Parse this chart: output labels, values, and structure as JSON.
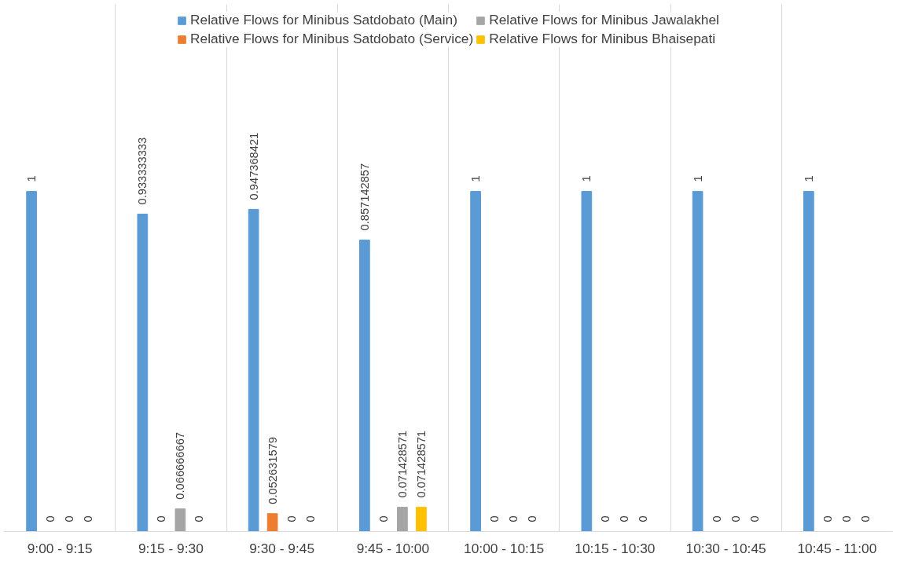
{
  "chart_data": {
    "type": "bar",
    "categories": [
      "9:00 - 9:15",
      "9:15 - 9:30",
      "9:30 - 9:45",
      "9:45 - 10:00",
      "10:00 - 10:15",
      "10:15 - 10:30",
      "10:30 - 10:45",
      "10:45 - 11:00"
    ],
    "series": [
      {
        "name": "Relative Flows for Minibus Satdobato (Main)",
        "color": "#5b9bd5",
        "values": [
          1,
          0.933333333,
          0.947368421,
          0.857142857,
          1,
          1,
          1,
          1
        ]
      },
      {
        "name": "Relative Flows for Minibus Satdobato (Service)",
        "color": "#ed7d31",
        "values": [
          0,
          0,
          0.052631579,
          0,
          0,
          0,
          0,
          0
        ]
      },
      {
        "name": "Relative Flows for Minibus Jawalakhel",
        "color": "#a5a5a5",
        "values": [
          0,
          0.066666667,
          0,
          0.071428571,
          0,
          0,
          0,
          0
        ]
      },
      {
        "name": "Relative Flows for Minibus Bhaisepati",
        "color": "#ffc000",
        "values": [
          0,
          0,
          0,
          0.071428571,
          0,
          0,
          0,
          0
        ]
      }
    ],
    "data_labels": true,
    "grid": "x",
    "legend": "top"
  }
}
